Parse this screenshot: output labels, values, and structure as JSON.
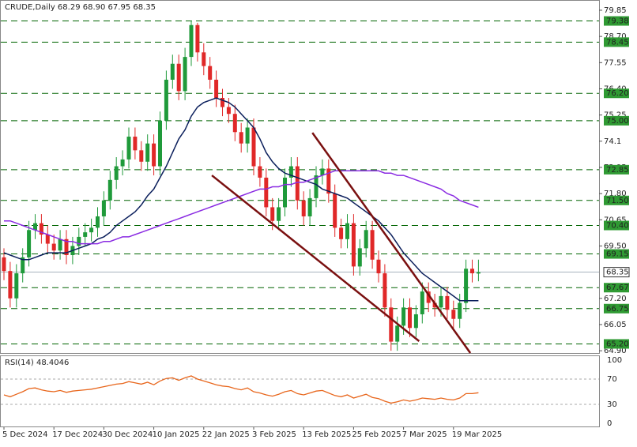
{
  "chart_data": [
    {
      "type": "candlestick",
      "title": "CRUDE,Daily  68.29 68.90 67.95 68.35",
      "categories": [
        "5 Dec 2024",
        null,
        null,
        null,
        null,
        null,
        null,
        null,
        "17 Dec 2024",
        null,
        null,
        null,
        null,
        null,
        null,
        null,
        "30 Dec 2024",
        null,
        null,
        null,
        null,
        null,
        null,
        null,
        "10 Jan 2025",
        null,
        null,
        null,
        null,
        null,
        null,
        null,
        "22 Jan 2025",
        null,
        null,
        null,
        null,
        null,
        null,
        null,
        "3 Feb 2025",
        null,
        null,
        null,
        null,
        null,
        null,
        null,
        "13 Feb 2025",
        null,
        null,
        null,
        null,
        null,
        null,
        null,
        "25 Feb 2025",
        null,
        null,
        null,
        null,
        null,
        null,
        null,
        "7 Mar 2025",
        null,
        null,
        null,
        null,
        null,
        null,
        null,
        "19 Mar 2025",
        null,
        null,
        null,
        null
      ],
      "open": [
        69.0,
        68.4,
        67.2,
        68.3,
        69.0,
        70.2,
        70.5,
        70.0,
        69.6,
        69.3,
        69.8,
        69.1,
        69.5,
        69.9,
        70.1,
        70.3,
        70.8,
        71.5,
        72.4,
        73.0,
        73.3,
        74.3,
        73.7,
        73.2,
        74.0,
        73.0,
        75.0,
        76.8,
        77.5,
        76.3,
        77.8,
        79.2,
        78.0,
        77.4,
        76.8,
        76.0,
        75.6,
        75.3,
        74.5,
        74.0,
        74.7,
        73.0,
        72.5,
        71.2,
        70.6,
        71.2,
        72.5,
        73.0,
        71.5,
        70.8,
        71.6,
        72.6,
        72.9,
        71.8,
        70.3,
        69.8,
        70.5,
        68.6,
        69.4,
        70.2,
        68.9,
        68.3,
        66.8,
        65.3,
        66.0,
        66.8,
        65.9,
        66.5,
        67.5,
        67.0,
        66.8,
        67.3,
        66.7,
        66.3,
        67.0,
        68.5,
        68.29
      ],
      "high": [
        69.4,
        68.8,
        68.7,
        69.4,
        70.6,
        70.9,
        70.9,
        70.4,
        70.0,
        70.2,
        70.2,
        69.9,
        70.3,
        70.5,
        70.7,
        71.2,
        71.9,
        72.8,
        73.4,
        73.7,
        74.7,
        74.7,
        74.1,
        74.4,
        74.4,
        75.4,
        77.2,
        77.9,
        77.9,
        78.2,
        79.4,
        79.3,
        78.4,
        77.8,
        77.2,
        76.4,
        76.0,
        75.7,
        74.9,
        75.1,
        75.1,
        73.4,
        72.9,
        71.6,
        71.6,
        72.9,
        73.4,
        73.4,
        71.9,
        72.0,
        73.0,
        73.3,
        73.3,
        72.2,
        70.7,
        70.9,
        70.9,
        69.8,
        70.6,
        70.6,
        69.3,
        68.7,
        67.2,
        66.4,
        67.2,
        67.2,
        66.9,
        67.9,
        67.9,
        67.4,
        67.7,
        67.7,
        67.1,
        67.4,
        68.9,
        68.9,
        68.9
      ],
      "low": [
        68.0,
        66.8,
        66.8,
        67.9,
        68.6,
        69.8,
        69.6,
        69.2,
        68.9,
        68.9,
        68.7,
        68.7,
        69.1,
        69.5,
        69.7,
        69.9,
        70.4,
        71.1,
        72.0,
        72.6,
        72.9,
        73.3,
        72.8,
        72.8,
        72.6,
        72.6,
        74.6,
        76.4,
        75.9,
        75.9,
        77.4,
        77.6,
        77.0,
        76.4,
        75.6,
        75.2,
        74.9,
        74.1,
        73.6,
        73.6,
        72.6,
        72.1,
        70.8,
        70.2,
        70.2,
        70.8,
        72.1,
        71.1,
        70.4,
        70.4,
        71.2,
        72.2,
        71.4,
        69.9,
        69.4,
        69.4,
        68.2,
        68.2,
        69.0,
        68.5,
        67.9,
        66.4,
        64.9,
        64.9,
        65.6,
        65.5,
        65.5,
        66.1,
        66.6,
        66.4,
        66.4,
        66.3,
        65.9,
        65.9,
        66.6,
        67.9,
        67.95
      ],
      "close": [
        68.4,
        67.2,
        68.3,
        69.0,
        70.2,
        70.5,
        70.0,
        69.6,
        69.3,
        69.8,
        69.1,
        69.5,
        69.9,
        70.1,
        70.3,
        70.8,
        71.5,
        72.4,
        73.0,
        73.3,
        74.3,
        73.7,
        73.2,
        74.0,
        73.0,
        75.0,
        76.8,
        77.5,
        76.3,
        77.8,
        79.2,
        78.0,
        77.4,
        76.8,
        76.0,
        75.6,
        75.3,
        74.5,
        74.0,
        74.7,
        73.0,
        72.5,
        71.2,
        70.6,
        71.2,
        72.5,
        73.0,
        71.5,
        70.8,
        71.6,
        72.6,
        72.9,
        71.8,
        70.3,
        69.8,
        70.5,
        68.6,
        69.4,
        70.2,
        68.9,
        68.3,
        66.8,
        65.3,
        66.0,
        66.8,
        65.9,
        66.5,
        67.5,
        67.0,
        66.8,
        67.3,
        66.7,
        66.3,
        67.0,
        68.5,
        68.3,
        68.35
      ],
      "up_color": "#1f9a3a",
      "down_color": "#e02828",
      "series": [
        {
          "color": "#0b1f5c",
          "values": [
            69.2,
            69.1,
            69.0,
            68.9,
            68.9,
            69.0,
            69.1,
            69.2,
            69.2,
            69.2,
            69.2,
            69.3,
            69.4,
            69.5,
            69.6,
            69.8,
            69.9,
            70.1,
            70.4,
            70.6,
            70.8,
            71.0,
            71.3,
            71.7,
            72.0,
            72.5,
            73.0,
            73.6,
            74.2,
            74.6,
            75.2,
            75.6,
            75.8,
            75.9,
            76.0,
            75.9,
            75.8,
            75.6,
            75.3,
            75.0,
            74.7,
            74.2,
            73.6,
            73.2,
            72.9,
            72.7,
            72.6,
            72.5,
            72.4,
            72.3,
            72.2,
            72.0,
            71.9,
            71.8,
            71.7,
            71.6,
            71.4,
            71.2,
            71.0,
            70.8,
            70.6,
            70.3,
            70.0,
            69.6,
            69.2,
            68.9,
            68.6,
            68.3,
            68.1,
            67.9,
            67.7,
            67.5,
            67.3,
            67.1,
            67.1,
            67.1,
            67.1
          ]
        },
        {
          "color": "#8a2be2",
          "values": [
            70.6,
            70.6,
            70.5,
            70.4,
            70.3,
            70.2,
            70.1,
            70.0,
            69.9,
            69.8,
            69.7,
            69.7,
            69.6,
            69.6,
            69.6,
            69.6,
            69.7,
            69.7,
            69.8,
            69.9,
            69.9,
            70.0,
            70.1,
            70.2,
            70.3,
            70.4,
            70.5,
            70.6,
            70.7,
            70.8,
            70.9,
            71.0,
            71.1,
            71.2,
            71.3,
            71.4,
            71.5,
            71.6,
            71.7,
            71.8,
            71.9,
            72.0,
            72.0,
            72.1,
            72.1,
            72.2,
            72.2,
            72.3,
            72.3,
            72.4,
            72.5,
            72.6,
            72.7,
            72.8,
            72.8,
            72.8,
            72.8,
            72.8,
            72.8,
            72.8,
            72.8,
            72.7,
            72.7,
            72.6,
            72.6,
            72.5,
            72.4,
            72.3,
            72.2,
            72.1,
            72.0,
            71.8,
            71.7,
            71.5,
            71.4,
            71.3,
            71.2
          ]
        }
      ],
      "trendlines": [
        {
          "color": "#7a1010",
          "x": [
            33.3,
            66.5
          ],
          "y": [
            72.6,
            65.32
          ]
        },
        {
          "color": "#7a1010",
          "x": [
            49.4,
            74.7
          ],
          "y": [
            74.47,
            64.8
          ]
        }
      ],
      "ylim": [
        64.8,
        80.3
      ],
      "yticks": [
        79.85,
        {
          "value": 78.7,
          "label": "78.70"
        },
        77.55,
        {
          "value": 76.4,
          "label": "76.40"
        },
        75.25,
        74.1,
        72.95,
        {
          "value": 71.8,
          "label": "71.80"
        },
        70.65,
        {
          "value": 69.5,
          "label": "69.50"
        },
        {
          "value": 67.2,
          "label": "67.20"
        },
        66.05,
        {
          "value": 64.9,
          "label": "64.90"
        }
      ],
      "levels": [
        79.38,
        78.45,
        {
          "value": 76.2,
          "label": "76.20"
        },
        {
          "value": 75,
          "label": "75.00"
        },
        72.85,
        {
          "value": 71.5,
          "label": "71.50"
        },
        {
          "value": 70.4,
          "label": "70.40"
        },
        69.15,
        67.67,
        66.75,
        {
          "value": 65.2,
          "label": "65.20"
        }
      ],
      "level_color": "#006400",
      "last_price": 68.35
    },
    {
      "type": "line",
      "title": "RSI(14) 48.4046",
      "color": "#e8661c",
      "values": [
        45,
        42,
        46,
        50,
        55,
        56,
        53,
        51,
        50,
        52,
        49,
        51,
        52,
        53,
        54,
        56,
        58,
        60,
        62,
        63,
        66,
        64,
        62,
        65,
        61,
        67,
        71,
        72,
        68,
        72,
        75,
        70,
        67,
        64,
        61,
        59,
        58,
        55,
        53,
        56,
        50,
        48,
        45,
        43,
        46,
        50,
        52,
        47,
        45,
        48,
        51,
        52,
        48,
        44,
        42,
        45,
        40,
        43,
        46,
        41,
        39,
        35,
        32,
        34,
        37,
        35,
        37,
        40,
        39,
        38,
        40,
        38,
        37,
        40,
        47,
        47,
        48.4046
      ],
      "ylim": [
        0,
        100
      ],
      "yticks": [
        0,
        30,
        70,
        100
      ]
    }
  ]
}
